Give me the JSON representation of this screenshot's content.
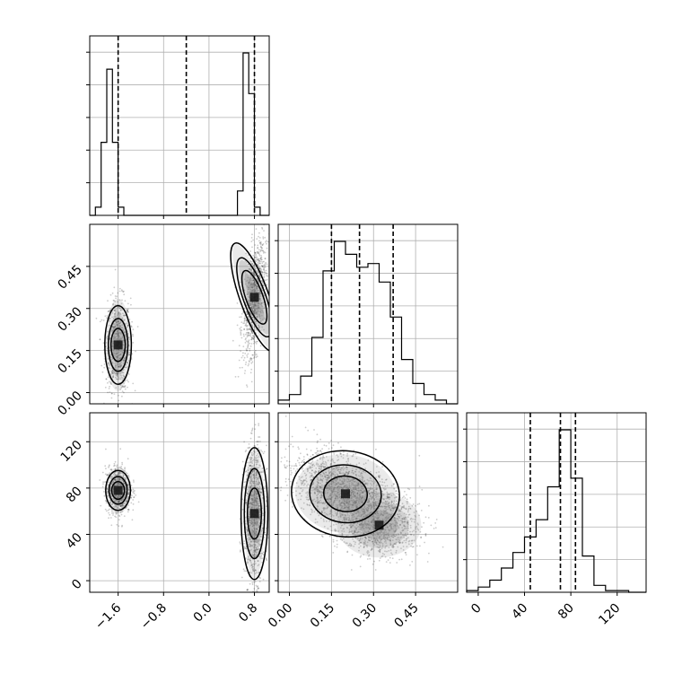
{
  "chart_data": {
    "type": "corner",
    "title": "",
    "parameters": [
      {
        "index": 0,
        "range": [
          -2.1,
          1.06
        ],
        "ticks": [
          -1.6,
          -0.8,
          0.0,
          0.8
        ],
        "tick_labels": [
          "−1.6",
          "−0.8",
          "0.0",
          "0.8"
        ],
        "quantiles": [
          -1.6,
          -0.4,
          0.8
        ]
      },
      {
        "index": 1,
        "range": [
          -0.04,
          0.6
        ],
        "ticks": [
          0.0,
          0.15,
          0.3,
          0.45
        ],
        "tick_labels": [
          "0.00",
          "0.15",
          "0.30",
          "0.45"
        ],
        "quantiles": [
          0.15,
          0.25,
          0.37
        ]
      },
      {
        "index": 2,
        "range": [
          -10,
          145
        ],
        "ticks": [
          0,
          40,
          80,
          120
        ],
        "tick_labels": [
          "0",
          "40",
          "80",
          "120"
        ],
        "quantiles": [
          45,
          71,
          84
        ]
      }
    ],
    "histograms": [
      {
        "param": 0,
        "edges": [
          -2.1,
          -2.0,
          -1.9,
          -1.8,
          -1.7,
          -1.6,
          -1.5,
          -1.4,
          -1.3,
          -1.2,
          -1.1,
          0.3,
          0.4,
          0.5,
          0.6,
          0.7,
          0.8,
          0.9,
          1.06
        ],
        "counts": [
          0,
          0.05,
          0.45,
          0.9,
          0.45,
          0.05,
          0,
          0,
          0,
          0,
          0,
          0,
          0,
          0.15,
          1.0,
          0.75,
          0.05,
          0
        ]
      },
      {
        "param": 1,
        "edges": [
          -0.04,
          0.0,
          0.04,
          0.08,
          0.12,
          0.16,
          0.2,
          0.24,
          0.28,
          0.32,
          0.36,
          0.4,
          0.44,
          0.48,
          0.52,
          0.56,
          0.6
        ],
        "counts": [
          0.02,
          0.05,
          0.15,
          0.36,
          0.72,
          0.88,
          0.81,
          0.74,
          0.76,
          0.66,
          0.47,
          0.24,
          0.11,
          0.05,
          0.02,
          0
        ]
      },
      {
        "param": 2,
        "edges": [
          -10,
          0,
          10,
          20,
          30,
          40,
          50,
          60,
          70,
          80,
          90,
          100,
          110,
          120,
          130,
          145
        ],
        "counts": [
          0.01,
          0.03,
          0.07,
          0.14,
          0.23,
          0.32,
          0.42,
          0.61,
          0.94,
          0.66,
          0.21,
          0.04,
          0.01,
          0.01,
          0
        ]
      }
    ],
    "contour_panels": [
      {
        "x_param": 0,
        "y_param": 1,
        "clusters": [
          {
            "center": [
              -1.6,
              0.17
            ],
            "spread": [
              0.11,
              0.082
            ],
            "n": 800,
            "levels": [
              [
                0.5,
                0.35
              ],
              [
                0.38,
                0.62
              ],
              [
                0.27,
                0.97
              ]
            ]
          },
          {
            "center": [
              0.8,
              0.34
            ],
            "spread": [
              0.1,
              0.1
            ],
            "n": 1100,
            "tilt": 0.45,
            "levels": [
              [
                0.28,
                0.55
              ],
              [
                0.2,
                0.85
              ],
              [
                0.13,
                1.2
              ]
            ]
          }
        ]
      },
      {
        "x_param": 0,
        "y_param": 2,
        "clusters": [
          {
            "center": [
              -1.6,
              78
            ],
            "spread": [
              0.11,
              10
            ],
            "n": 800,
            "levels": [
              [
                0.35,
                0.28
              ],
              [
                0.25,
                0.55
              ],
              [
                0.18,
                0.88
              ]
            ]
          },
          {
            "center": [
              0.8,
              58
            ],
            "spread": [
              0.09,
              28
            ],
            "n": 1100,
            "levels": [
              [
                0.35,
                0.42
              ],
              [
                0.25,
                0.8
              ],
              [
                0.18,
                1.2
              ]
            ]
          }
        ]
      },
      {
        "x_param": 1,
        "y_param": 2,
        "clusters": [
          {
            "center": [
              0.2,
              75
            ],
            "spread": [
              0.09,
              17
            ],
            "n": 2000,
            "tilt": -0.5,
            "levels": [
              [
                0.65,
                0.45
              ],
              [
                0.5,
                0.8
              ],
              [
                0.38,
                1.25
              ]
            ]
          },
          {
            "center": [
              0.32,
              48
            ],
            "spread": [
              0.075,
              14
            ],
            "n": 900
          }
        ]
      }
    ],
    "grid": true
  }
}
